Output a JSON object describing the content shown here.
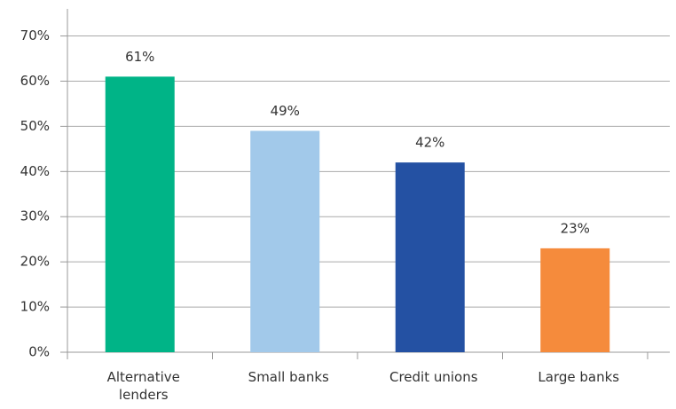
{
  "chart_data": {
    "type": "bar",
    "categories": [
      "Alternative lenders",
      "Small banks",
      "Credit unions",
      "Large banks"
    ],
    "values": [
      61,
      49,
      42,
      23
    ],
    "value_labels": [
      "61%",
      "49%",
      "42%",
      "23%"
    ],
    "colors": [
      "#00b487",
      "#a2c9ea",
      "#2451a3",
      "#f58b3c"
    ],
    "ylim": [
      0,
      76
    ],
    "yticks": [
      {
        "value": 0,
        "label": "0%"
      },
      {
        "value": 10,
        "label": "10%"
      },
      {
        "value": 20,
        "label": "20%"
      },
      {
        "value": 30,
        "label": "30%"
      },
      {
        "value": 40,
        "label": "40%"
      },
      {
        "value": 50,
        "label": "50%"
      },
      {
        "value": 60,
        "label": "60%"
      },
      {
        "value": 70,
        "label": "70%"
      }
    ],
    "grid": true
  }
}
